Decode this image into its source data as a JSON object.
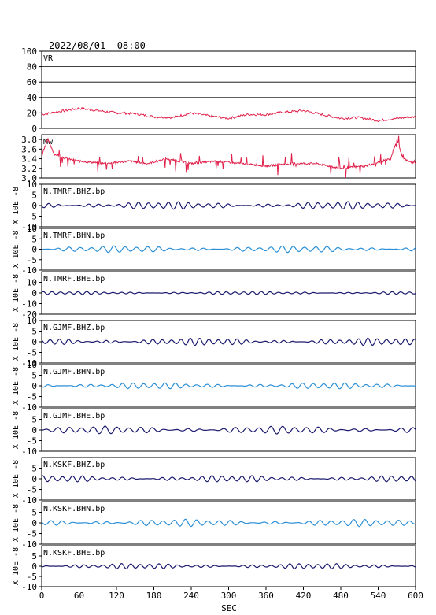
{
  "header": {
    "timestamp": "2022/08/01  08:00"
  },
  "x_axis": {
    "label": "SEC",
    "ticks": [
      "0",
      "60",
      "120",
      "180",
      "240",
      "300",
      "360",
      "420",
      "480",
      "540",
      "600"
    ]
  },
  "colors": {
    "vr_line": "#e0204a",
    "mw_line": "#e0204a",
    "dark_trace": "#1a1a6e",
    "light_trace": "#2a8fd6",
    "grid": "#000000"
  },
  "chart_data": {
    "type": "line",
    "xlim": [
      0,
      600
    ],
    "xlabel": "SEC",
    "panels": [
      {
        "name": "VR",
        "ylabel": "",
        "ylim": [
          0,
          100
        ],
        "yticks": [
          "0",
          "20",
          "40",
          "60",
          "80",
          "100"
        ],
        "grid": true,
        "color": "#e0204a",
        "x": [
          0,
          30,
          60,
          90,
          120,
          150,
          180,
          210,
          240,
          270,
          300,
          330,
          360,
          390,
          420,
          450,
          480,
          510,
          540,
          570,
          600
        ],
        "values": [
          18,
          22,
          26,
          23,
          20,
          19,
          15,
          14,
          20,
          16,
          13,
          18,
          18,
          21,
          23,
          18,
          13,
          14,
          10,
          13,
          15
        ]
      },
      {
        "name": "Mw",
        "ylabel": "",
        "ylim": [
          3.0,
          3.9
        ],
        "yticks": [
          "3.0",
          "3.2",
          "3.4",
          "3.6",
          "3.8"
        ],
        "grid": false,
        "color": "#e0204a",
        "x": [
          0,
          10,
          20,
          40,
          60,
          100,
          140,
          170,
          200,
          240,
          280,
          320,
          360,
          400,
          440,
          480,
          520,
          560,
          570,
          580,
          600
        ],
        "values": [
          3.5,
          3.8,
          3.5,
          3.4,
          3.35,
          3.3,
          3.35,
          3.3,
          3.4,
          3.3,
          3.35,
          3.3,
          3.25,
          3.3,
          3.3,
          3.2,
          3.25,
          3.4,
          3.8,
          3.4,
          3.3
        ]
      },
      {
        "name": "N.TMRF.BHZ.bp",
        "ylabel": "X 10E -8",
        "ylim": [
          -10,
          10
        ],
        "yticks": [
          "-10",
          "-5",
          "0",
          "5",
          "10"
        ],
        "color": "#1a1a6e",
        "amplitude": 1.5,
        "period": 16
      },
      {
        "name": "N.TMRF.BHN.bp",
        "ylabel": "X 10E -8",
        "ylim": [
          -10,
          10
        ],
        "yticks": [
          "-10",
          "-5",
          "0",
          "5",
          "10"
        ],
        "color": "#2a8fd6",
        "amplitude": 1.3,
        "period": 18
      },
      {
        "name": "N.TMRF.BHE.bp",
        "ylabel": "X 10E -8",
        "ylim": [
          -20,
          20
        ],
        "yticks": [
          "-20",
          "-10",
          "0",
          "10"
        ],
        "color": "#1a1a6e",
        "amplitude": 1.2,
        "period": 14
      },
      {
        "name": "N.GJMF.BHZ.bp",
        "ylabel": "X 10E -8",
        "ylim": [
          -10,
          10
        ],
        "yticks": [
          "-10",
          "-5",
          "0",
          "5",
          "10"
        ],
        "color": "#1a1a6e",
        "amplitude": 1.4,
        "period": 15
      },
      {
        "name": "N.GJMF.BHN.bp",
        "ylabel": "X 10E -8",
        "ylim": [
          -10,
          10
        ],
        "yticks": [
          "-10",
          "-5",
          "0",
          "5",
          "10"
        ],
        "color": "#2a8fd6",
        "amplitude": 1.2,
        "period": 17
      },
      {
        "name": "N.GJMF.BHE.bp",
        "ylabel": "X 10E -8",
        "ylim": [
          -10,
          10
        ],
        "yticks": [
          "-10",
          "-5",
          "0",
          "5"
        ],
        "color": "#1a1a6e",
        "amplitude": 1.5,
        "period": 19
      },
      {
        "name": "N.KSKF.BHZ.bp",
        "ylabel": "X 10E -8",
        "ylim": [
          -10,
          10
        ],
        "yticks": [
          "-10",
          "-5",
          "0",
          "5"
        ],
        "color": "#1a1a6e",
        "amplitude": 1.3,
        "period": 16
      },
      {
        "name": "N.KSKF.BHN.bp",
        "ylabel": "X 10E -8",
        "ylim": [
          -10,
          10
        ],
        "yticks": [
          "-10",
          "-5",
          "0",
          "5"
        ],
        "color": "#2a8fd6",
        "amplitude": 1.4,
        "period": 18
      },
      {
        "name": "N.KSKF.BHE.bp",
        "ylabel": "X 10E -8",
        "ylim": [
          -10,
          10
        ],
        "yticks": [
          "-10",
          "-5",
          "0",
          "5"
        ],
        "color": "#1a1a6e",
        "amplitude": 1.1,
        "period": 15
      }
    ]
  }
}
